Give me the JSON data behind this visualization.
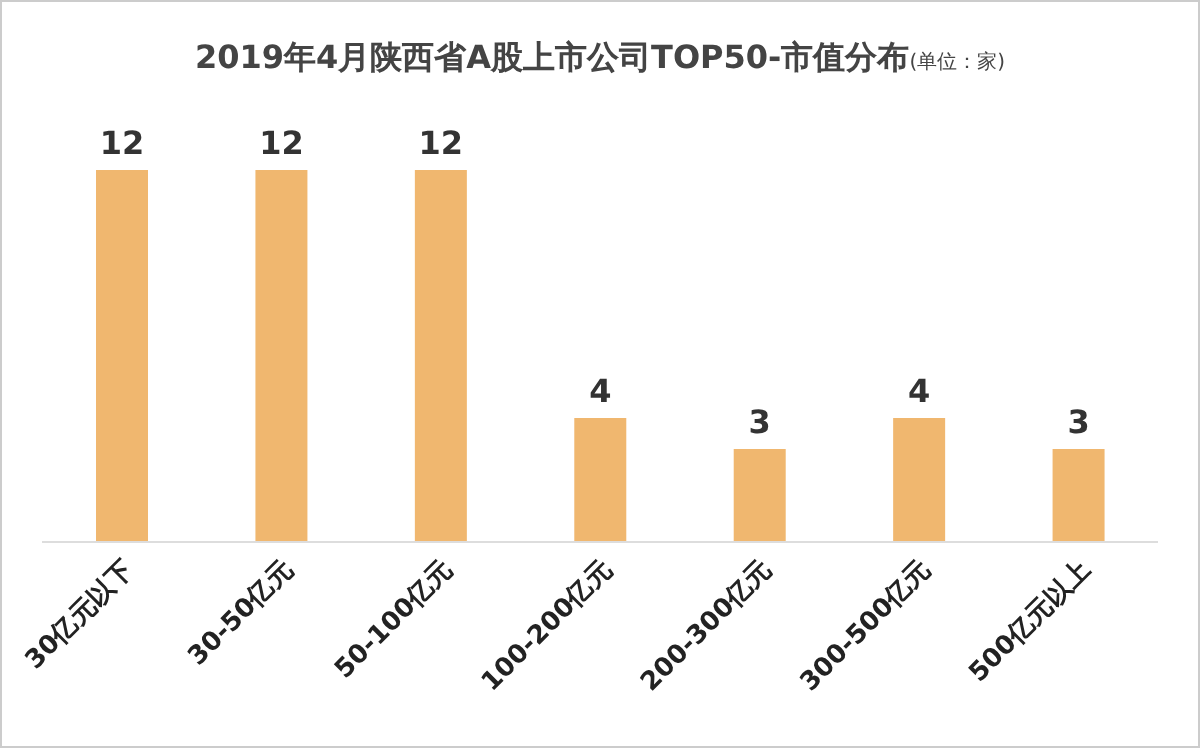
{
  "chart_data": {
    "type": "bar",
    "title": "2019年4月陕西省A股上市公司TOP50-市值分布",
    "subtitle": "(单位：家)",
    "categories": [
      "30亿元以下",
      "30-50亿元",
      "50-100亿元",
      "100-200亿元",
      "200-300亿元",
      "300-500亿元",
      "500亿元以上"
    ],
    "values": [
      12,
      12,
      12,
      4,
      3,
      4,
      3
    ],
    "color": "#f0b76f",
    "data_labels": true,
    "grid": false,
    "legend": false
  }
}
